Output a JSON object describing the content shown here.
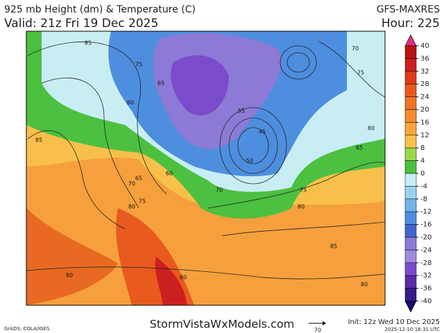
{
  "header": {
    "title": "925 mb Height (dm) & Temperature (C)",
    "valid": "Valid: 21z Fri 19 Dec 2025",
    "model": "GFS-MAXRES",
    "hour": "Hour: 225"
  },
  "colorbar": {
    "ticks": [
      40,
      36,
      32,
      28,
      24,
      20,
      16,
      12,
      8,
      4,
      0,
      -4,
      -8,
      -12,
      -16,
      -20,
      -24,
      -28,
      -32,
      -36,
      -40
    ],
    "colors": [
      "#e0307a",
      "#b41414",
      "#cc2020",
      "#de3a1c",
      "#e85a1e",
      "#f07424",
      "#f38c2c",
      "#f6a63c",
      "#f8c04a",
      "#9ad84a",
      "#4cc040",
      "#c8eef4",
      "#9cd2f0",
      "#70b4ea",
      "#4e8ede",
      "#3e66d2",
      "#8c7ad6",
      "#a08ce0",
      "#7a4ccc",
      "#5a2aaa",
      "#3a1a8a",
      "#1a0a70"
    ]
  },
  "contour_labels": [
    85,
    70,
    75,
    80,
    85,
    75,
    60,
    55,
    50,
    45,
    65,
    70,
    80,
    65,
    75,
    80,
    85,
    80,
    80,
    85,
    80,
    70,
    60,
    75
  ],
  "footer": {
    "credit": "GrADS: COLA/IGES",
    "site": "StormVistaWxModels.com",
    "vector_scale": "70",
    "init": "Init: 12z Wed 10 Dec 2025",
    "timestamp": "2025-12-10-16:31 UTC"
  }
}
